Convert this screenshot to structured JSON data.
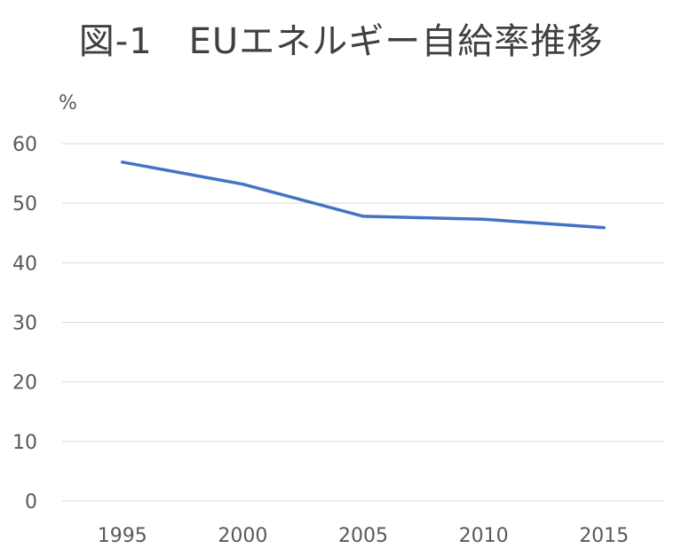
{
  "chart_data": {
    "type": "line",
    "title": "図-1　EUエネルギー自給率推移",
    "ylabel": "%",
    "xlabel": "",
    "categories": [
      "1995",
      "2000",
      "2005",
      "2010",
      "2015"
    ],
    "series": [
      {
        "values": [
          56.9,
          53.2,
          47.8,
          47.3,
          45.9
        ]
      }
    ],
    "ylim": [
      0,
      60
    ],
    "yticks": [
      0,
      10,
      20,
      30,
      40,
      50,
      60
    ],
    "grid": true,
    "legend": "none",
    "colors": {
      "line": "#4472C4",
      "grid": "#D9D9D9",
      "axis_text": "#595959"
    }
  }
}
